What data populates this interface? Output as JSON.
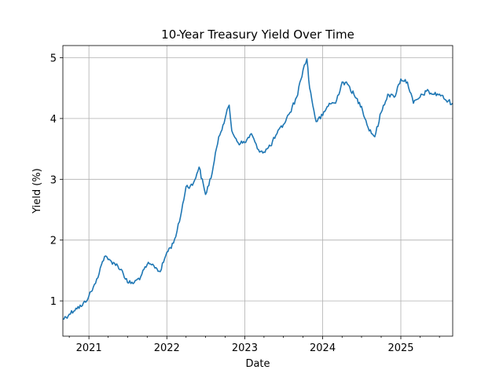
{
  "chart_data": {
    "type": "line",
    "title": "10-Year Treasury Yield Over Time",
    "xlabel": "Date",
    "ylabel": "Yield (%)",
    "xlim": [
      "2020-09-01",
      "2025-09-01"
    ],
    "ylim": [
      0.42,
      5.2
    ],
    "x_ticks": [
      "2021",
      "2022",
      "2023",
      "2024",
      "2025"
    ],
    "y_ticks": [
      1,
      2,
      3,
      4,
      5
    ],
    "grid": true,
    "line_color": "#1f77b4",
    "series": [
      {
        "x": [
          "2020-09-01",
          "2020-10-01",
          "2020-11-01",
          "2020-12-01",
          "2021-01-01",
          "2021-02-01",
          "2021-03-01",
          "2021-03-15",
          "2021-04-01",
          "2021-05-01",
          "2021-06-01",
          "2021-07-01",
          "2021-08-01",
          "2021-09-01",
          "2021-10-01",
          "2021-11-01",
          "2021-12-01",
          "2022-01-01",
          "2022-02-01",
          "2022-03-01",
          "2022-04-01",
          "2022-05-01",
          "2022-06-01",
          "2022-07-01",
          "2022-08-01",
          "2022-09-01",
          "2022-10-01",
          "2022-10-20",
          "2022-11-01",
          "2022-12-01",
          "2023-01-01",
          "2023-02-01",
          "2023-03-01",
          "2023-04-01",
          "2023-05-01",
          "2023-06-01",
          "2023-07-01",
          "2023-08-01",
          "2023-09-01",
          "2023-10-01",
          "2023-10-19",
          "2023-11-01",
          "2023-12-01",
          "2024-01-01",
          "2024-02-01",
          "2024-03-01",
          "2024-04-01",
          "2024-05-01",
          "2024-06-01",
          "2024-07-01",
          "2024-08-01",
          "2024-09-01",
          "2024-10-01",
          "2024-11-01",
          "2024-12-01",
          "2025-01-01",
          "2025-02-01",
          "2025-03-01",
          "2025-04-01",
          "2025-05-01",
          "2025-06-01",
          "2025-07-01",
          "2025-08-01",
          "2025-09-01"
        ],
        "y": [
          0.7,
          0.78,
          0.88,
          0.92,
          1.08,
          1.29,
          1.6,
          1.73,
          1.68,
          1.62,
          1.52,
          1.3,
          1.3,
          1.4,
          1.6,
          1.58,
          1.48,
          1.8,
          1.95,
          2.3,
          2.88,
          2.9,
          3.2,
          2.75,
          3.1,
          3.7,
          4.0,
          4.22,
          3.8,
          3.6,
          3.6,
          3.75,
          3.5,
          3.45,
          3.55,
          3.75,
          3.9,
          4.1,
          4.35,
          4.8,
          4.98,
          4.5,
          3.95,
          4.05,
          4.25,
          4.25,
          4.6,
          4.55,
          4.35,
          4.2,
          3.85,
          3.7,
          4.1,
          4.4,
          4.35,
          4.65,
          4.6,
          4.25,
          4.35,
          4.45,
          4.4,
          4.4,
          4.3,
          4.25
        ]
      }
    ]
  }
}
